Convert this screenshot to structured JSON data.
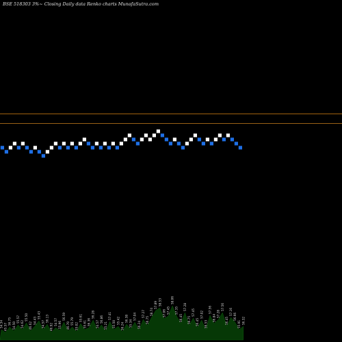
{
  "header": {
    "title": "BSE 518303 3%~   Closing Daily data  Renko  charts MunafaSutra.com"
  },
  "colors": {
    "background": "#000000",
    "up_brick": "#ffffff",
    "down_brick": "#1e6fe6",
    "line_upper": "#a0620f",
    "line_lower": "#b0701a",
    "volume_fill": "#063806",
    "volume_stroke": "#0c5a0c"
  },
  "chart_data": {
    "type": "renko",
    "brick_size": 1,
    "reference_lines": [
      8,
      6.6
    ],
    "bricks": [
      {
        "level": 0,
        "dir": "down"
      },
      {
        "level": -1,
        "dir": "down"
      },
      {
        "level": 0,
        "dir": "up"
      },
      {
        "level": 1,
        "dir": "up"
      },
      {
        "level": 0,
        "dir": "down"
      },
      {
        "level": 1,
        "dir": "up"
      },
      {
        "level": 0,
        "dir": "down"
      },
      {
        "level": -1,
        "dir": "down"
      },
      {
        "level": 0,
        "dir": "up"
      },
      {
        "level": -1,
        "dir": "down"
      },
      {
        "level": -2,
        "dir": "down"
      },
      {
        "level": -1,
        "dir": "up"
      },
      {
        "level": 0,
        "dir": "up"
      },
      {
        "level": 1,
        "dir": "up"
      },
      {
        "level": 0,
        "dir": "down"
      },
      {
        "level": 1,
        "dir": "up"
      },
      {
        "level": 0,
        "dir": "down"
      },
      {
        "level": 1,
        "dir": "up"
      },
      {
        "level": 0,
        "dir": "down"
      },
      {
        "level": 1,
        "dir": "up"
      },
      {
        "level": 2,
        "dir": "up"
      },
      {
        "level": 1,
        "dir": "down"
      },
      {
        "level": 0,
        "dir": "down"
      },
      {
        "level": 1,
        "dir": "up"
      },
      {
        "level": 0,
        "dir": "down"
      },
      {
        "level": 1,
        "dir": "up"
      },
      {
        "level": 0,
        "dir": "down"
      },
      {
        "level": 1,
        "dir": "up"
      },
      {
        "level": 0,
        "dir": "down"
      },
      {
        "level": 1,
        "dir": "up"
      },
      {
        "level": 2,
        "dir": "up"
      },
      {
        "level": 3,
        "dir": "up"
      },
      {
        "level": 2,
        "dir": "down"
      },
      {
        "level": 1,
        "dir": "down"
      },
      {
        "level": 2,
        "dir": "up"
      },
      {
        "level": 3,
        "dir": "up"
      },
      {
        "level": 2,
        "dir": "up"
      },
      {
        "level": 3,
        "dir": "up"
      },
      {
        "level": 4,
        "dir": "up"
      },
      {
        "level": 3,
        "dir": "down"
      },
      {
        "level": 2,
        "dir": "down"
      },
      {
        "level": 1,
        "dir": "down"
      },
      {
        "level": 2,
        "dir": "up"
      },
      {
        "level": 1,
        "dir": "down"
      },
      {
        "level": 0,
        "dir": "down"
      },
      {
        "level": 1,
        "dir": "up"
      },
      {
        "level": 2,
        "dir": "up"
      },
      {
        "level": 3,
        "dir": "up"
      },
      {
        "level": 2,
        "dir": "down"
      },
      {
        "level": 1,
        "dir": "down"
      },
      {
        "level": 2,
        "dir": "up"
      },
      {
        "level": 1,
        "dir": "down"
      },
      {
        "level": 2,
        "dir": "up"
      },
      {
        "level": 3,
        "dir": "up"
      },
      {
        "level": 2,
        "dir": "down"
      },
      {
        "level": 3,
        "dir": "up"
      },
      {
        "level": 2,
        "dir": "down"
      },
      {
        "level": 1,
        "dir": "down"
      },
      {
        "level": 0,
        "dir": "down"
      }
    ],
    "volume": [
      {
        "v": 0.3,
        "label": "54.34"
      },
      {
        "v": 0.22,
        "label": "45.57"
      },
      {
        "v": 0.38,
        "label": "56.75"
      },
      {
        "v": 0.26,
        "label": "54.50"
      },
      {
        "v": 0.44,
        "label": "55.57"
      },
      {
        "v": 0.3,
        "label": "54.62"
      },
      {
        "v": 0.5,
        "label": "55.50"
      },
      {
        "v": 0.26,
        "label": "46.62"
      },
      {
        "v": 0.4,
        "label": "54.43"
      },
      {
        "v": 0.56,
        "label": "55.43"
      },
      {
        "v": 0.3,
        "label": "54.57"
      },
      {
        "v": 0.46,
        "label": "56.13"
      },
      {
        "v": 0.22,
        "label": "46.92"
      },
      {
        "v": 0.36,
        "label": "54.57"
      },
      {
        "v": 0.28,
        "label": "55.96"
      },
      {
        "v": 0.52,
        "label": "56.59"
      },
      {
        "v": 0.26,
        "label": "46.70"
      },
      {
        "v": 0.38,
        "label": "55.79"
      },
      {
        "v": 0.24,
        "label": "55.02"
      },
      {
        "v": 0.48,
        "label": "55.61"
      },
      {
        "v": 0.3,
        "label": "55.61"
      },
      {
        "v": 0.36,
        "label": "56.36"
      },
      {
        "v": 0.58,
        "label": "56.28"
      },
      {
        "v": 0.3,
        "label": "54.57"
      },
      {
        "v": 0.44,
        "label": "56.86"
      },
      {
        "v": 0.26,
        "label": "55.21"
      },
      {
        "v": 0.54,
        "label": "57.41"
      },
      {
        "v": 0.3,
        "label": "55.50"
      },
      {
        "v": 0.4,
        "label": "55.42"
      },
      {
        "v": 0.24,
        "label": "56.24"
      },
      {
        "v": 0.46,
        "label": "56.38"
      },
      {
        "v": 0.32,
        "label": "55.34"
      },
      {
        "v": 0.52,
        "label": "57.04"
      },
      {
        "v": 0.28,
        "label": "56.24"
      },
      {
        "v": 0.6,
        "label": "57.27"
      },
      {
        "v": 0.42,
        "label": "56.75"
      },
      {
        "v": 0.66,
        "label": "58.74"
      },
      {
        "v": 0.86,
        "label": "57.89"
      },
      {
        "v": 0.94,
        "label": "58.53"
      },
      {
        "v": 0.62,
        "label": "57.06"
      },
      {
        "v": 0.7,
        "label": "57.45"
      },
      {
        "v": 1.0,
        "label": "58.06"
      },
      {
        "v": 0.7,
        "label": "57.35"
      },
      {
        "v": 0.48,
        "label": "56.45"
      },
      {
        "v": 0.8,
        "label": "57.28"
      },
      {
        "v": 0.42,
        "label": "56.75"
      },
      {
        "v": 0.64,
        "label": "57.45"
      },
      {
        "v": 0.36,
        "label": "56.45"
      },
      {
        "v": 0.58,
        "label": "57.02"
      },
      {
        "v": 0.3,
        "label": "56.53"
      },
      {
        "v": 0.72,
        "label": "57.56"
      },
      {
        "v": 0.48,
        "label": "56.84"
      },
      {
        "v": 0.6,
        "label": "57.28"
      },
      {
        "v": 0.8,
        "label": "57.56"
      },
      {
        "v": 0.4,
        "label": "56.45"
      },
      {
        "v": 0.66,
        "label": "57.16"
      },
      {
        "v": 0.52,
        "label": "56.66"
      },
      {
        "v": 0.3,
        "label": "55.91"
      },
      {
        "v": 0.4,
        "label": "56.32"
      }
    ]
  }
}
